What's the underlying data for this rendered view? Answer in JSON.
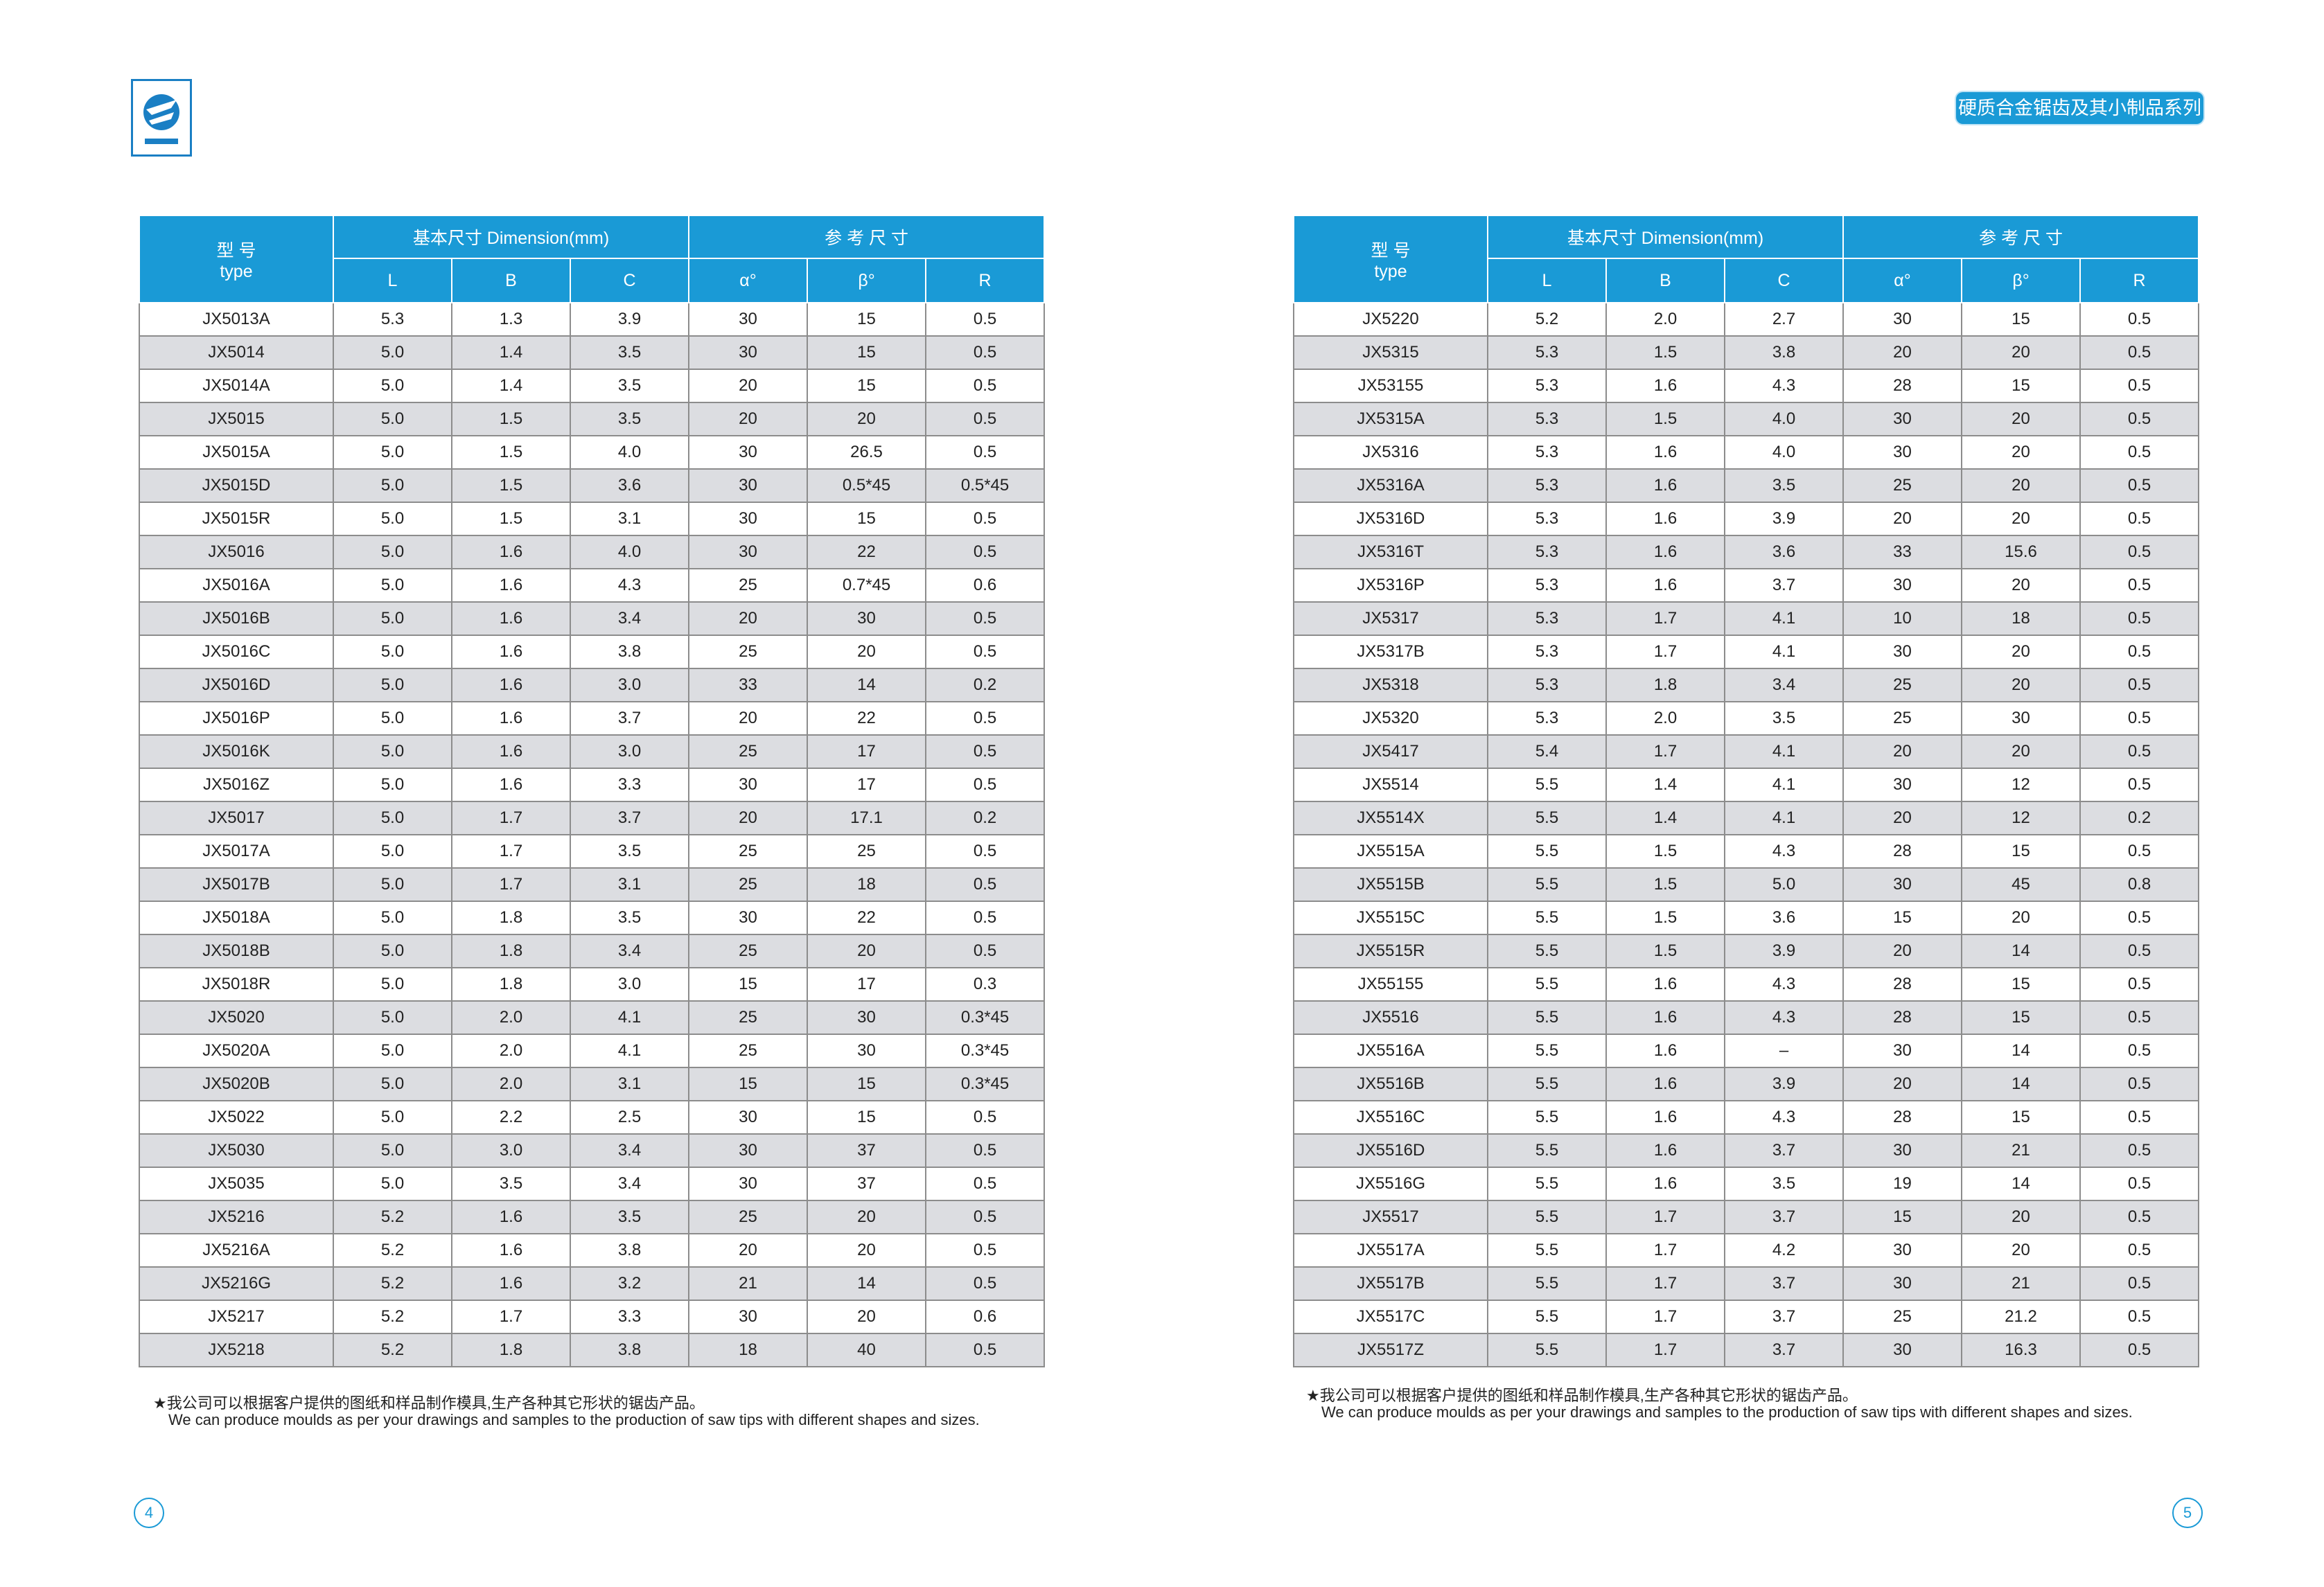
{
  "header": {
    "series_title": "硬质合金锯齿及其小制品系列"
  },
  "pages": [
    {
      "page_number": "4",
      "table": {
        "type_zh": "型 号",
        "type_en": "type",
        "dimension_group": "基本尺寸 Dimension(mm)",
        "reference_group": "参 考 尺 寸",
        "columns": [
          "L",
          "B",
          "C",
          "α°",
          "β°",
          "R"
        ],
        "rows": [
          [
            "JX5013A",
            "5.3",
            "1.3",
            "3.9",
            "30",
            "15",
            "0.5"
          ],
          [
            "JX5014",
            "5.0",
            "1.4",
            "3.5",
            "30",
            "15",
            "0.5"
          ],
          [
            "JX5014A",
            "5.0",
            "1.4",
            "3.5",
            "20",
            "15",
            "0.5"
          ],
          [
            "JX5015",
            "5.0",
            "1.5",
            "3.5",
            "20",
            "20",
            "0.5"
          ],
          [
            "JX5015A",
            "5.0",
            "1.5",
            "4.0",
            "30",
            "26.5",
            "0.5"
          ],
          [
            "JX5015D",
            "5.0",
            "1.5",
            "3.6",
            "30",
            "0.5*45",
            "0.5*45"
          ],
          [
            "JX5015R",
            "5.0",
            "1.5",
            "3.1",
            "30",
            "15",
            "0.5"
          ],
          [
            "JX5016",
            "5.0",
            "1.6",
            "4.0",
            "30",
            "22",
            "0.5"
          ],
          [
            "JX5016A",
            "5.0",
            "1.6",
            "4.3",
            "25",
            "0.7*45",
            "0.6"
          ],
          [
            "JX5016B",
            "5.0",
            "1.6",
            "3.4",
            "20",
            "30",
            "0.5"
          ],
          [
            "JX5016C",
            "5.0",
            "1.6",
            "3.8",
            "25",
            "20",
            "0.5"
          ],
          [
            "JX5016D",
            "5.0",
            "1.6",
            "3.0",
            "33",
            "14",
            "0.2"
          ],
          [
            "JX5016P",
            "5.0",
            "1.6",
            "3.7",
            "20",
            "22",
            "0.5"
          ],
          [
            "JX5016K",
            "5.0",
            "1.6",
            "3.0",
            "25",
            "17",
            "0.5"
          ],
          [
            "JX5016Z",
            "5.0",
            "1.6",
            "3.3",
            "30",
            "17",
            "0.5"
          ],
          [
            "JX5017",
            "5.0",
            "1.7",
            "3.7",
            "20",
            "17.1",
            "0.2"
          ],
          [
            "JX5017A",
            "5.0",
            "1.7",
            "3.5",
            "25",
            "25",
            "0.5"
          ],
          [
            "JX5017B",
            "5.0",
            "1.7",
            "3.1",
            "25",
            "18",
            "0.5"
          ],
          [
            "JX5018A",
            "5.0",
            "1.8",
            "3.5",
            "30",
            "22",
            "0.5"
          ],
          [
            "JX5018B",
            "5.0",
            "1.8",
            "3.4",
            "25",
            "20",
            "0.5"
          ],
          [
            "JX5018R",
            "5.0",
            "1.8",
            "3.0",
            "15",
            "17",
            "0.3"
          ],
          [
            "JX5020",
            "5.0",
            "2.0",
            "4.1",
            "25",
            "30",
            "0.3*45"
          ],
          [
            "JX5020A",
            "5.0",
            "2.0",
            "4.1",
            "25",
            "30",
            "0.3*45"
          ],
          [
            "JX5020B",
            "5.0",
            "2.0",
            "3.1",
            "15",
            "15",
            "0.3*45"
          ],
          [
            "JX5022",
            "5.0",
            "2.2",
            "2.5",
            "30",
            "15",
            "0.5"
          ],
          [
            "JX5030",
            "5.0",
            "3.0",
            "3.4",
            "30",
            "37",
            "0.5"
          ],
          [
            "JX5035",
            "5.0",
            "3.5",
            "3.4",
            "30",
            "37",
            "0.5"
          ],
          [
            "JX5216",
            "5.2",
            "1.6",
            "3.5",
            "25",
            "20",
            "0.5"
          ],
          [
            "JX5216A",
            "5.2",
            "1.6",
            "3.8",
            "20",
            "20",
            "0.5"
          ],
          [
            "JX5216G",
            "5.2",
            "1.6",
            "3.2",
            "21",
            "14",
            "0.5"
          ],
          [
            "JX5217",
            "5.2",
            "1.7",
            "3.3",
            "30",
            "20",
            "0.6"
          ],
          [
            "JX5218",
            "5.2",
            "1.8",
            "3.8",
            "18",
            "40",
            "0.5"
          ]
        ]
      },
      "note": {
        "zh": "★我公司可以根据客户提供的图纸和样品制作模具,生产各种其它形状的锯齿产品。",
        "en": "We can produce moulds as per your drawings and samples to the production of saw tips with different shapes and sizes."
      }
    },
    {
      "page_number": "5",
      "table": {
        "type_zh": "型 号",
        "type_en": "type",
        "dimension_group": "基本尺寸 Dimension(mm)",
        "reference_group": "参 考 尺 寸",
        "columns": [
          "L",
          "B",
          "C",
          "α°",
          "β°",
          "R"
        ],
        "rows": [
          [
            "JX5220",
            "5.2",
            "2.0",
            "2.7",
            "30",
            "15",
            "0.5"
          ],
          [
            "JX5315",
            "5.3",
            "1.5",
            "3.8",
            "20",
            "20",
            "0.5"
          ],
          [
            "JX53155",
            "5.3",
            "1.6",
            "4.3",
            "28",
            "15",
            "0.5"
          ],
          [
            "JX5315A",
            "5.3",
            "1.5",
            "4.0",
            "30",
            "20",
            "0.5"
          ],
          [
            "JX5316",
            "5.3",
            "1.6",
            "4.0",
            "30",
            "20",
            "0.5"
          ],
          [
            "JX5316A",
            "5.3",
            "1.6",
            "3.5",
            "25",
            "20",
            "0.5"
          ],
          [
            "JX5316D",
            "5.3",
            "1.6",
            "3.9",
            "20",
            "20",
            "0.5"
          ],
          [
            "JX5316T",
            "5.3",
            "1.6",
            "3.6",
            "33",
            "15.6",
            "0.5"
          ],
          [
            "JX5316P",
            "5.3",
            "1.6",
            "3.7",
            "30",
            "20",
            "0.5"
          ],
          [
            "JX5317",
            "5.3",
            "1.7",
            "4.1",
            "10",
            "18",
            "0.5"
          ],
          [
            "JX5317B",
            "5.3",
            "1.7",
            "4.1",
            "30",
            "20",
            "0.5"
          ],
          [
            "JX5318",
            "5.3",
            "1.8",
            "3.4",
            "25",
            "20",
            "0.5"
          ],
          [
            "JX5320",
            "5.3",
            "2.0",
            "3.5",
            "25",
            "30",
            "0.5"
          ],
          [
            "JX5417",
            "5.4",
            "1.7",
            "4.1",
            "20",
            "20",
            "0.5"
          ],
          [
            "JX5514",
            "5.5",
            "1.4",
            "4.1",
            "30",
            "12",
            "0.5"
          ],
          [
            "JX5514X",
            "5.5",
            "1.4",
            "4.1",
            "20",
            "12",
            "0.2"
          ],
          [
            "JX5515A",
            "5.5",
            "1.5",
            "4.3",
            "28",
            "15",
            "0.5"
          ],
          [
            "JX5515B",
            "5.5",
            "1.5",
            "5.0",
            "30",
            "45",
            "0.8"
          ],
          [
            "JX5515C",
            "5.5",
            "1.5",
            "3.6",
            "15",
            "20",
            "0.5"
          ],
          [
            "JX5515R",
            "5.5",
            "1.5",
            "3.9",
            "20",
            "14",
            "0.5"
          ],
          [
            "JX55155",
            "5.5",
            "1.6",
            "4.3",
            "28",
            "15",
            "0.5"
          ],
          [
            "JX5516",
            "5.5",
            "1.6",
            "4.3",
            "28",
            "15",
            "0.5"
          ],
          [
            "JX5516A",
            "5.5",
            "1.6",
            "–",
            "30",
            "14",
            "0.5"
          ],
          [
            "JX5516B",
            "5.5",
            "1.6",
            "3.9",
            "20",
            "14",
            "0.5"
          ],
          [
            "JX5516C",
            "5.5",
            "1.6",
            "4.3",
            "28",
            "15",
            "0.5"
          ],
          [
            "JX5516D",
            "5.5",
            "1.6",
            "3.7",
            "30",
            "21",
            "0.5"
          ],
          [
            "JX5516G",
            "5.5",
            "1.6",
            "3.5",
            "19",
            "14",
            "0.5"
          ],
          [
            "JX5517",
            "5.5",
            "1.7",
            "3.7",
            "15",
            "20",
            "0.5"
          ],
          [
            "JX5517A",
            "5.5",
            "1.7",
            "4.2",
            "30",
            "20",
            "0.5"
          ],
          [
            "JX5517B",
            "5.5",
            "1.7",
            "3.7",
            "30",
            "21",
            "0.5"
          ],
          [
            "JX5517C",
            "5.5",
            "1.7",
            "3.7",
            "25",
            "21.2",
            "0.5"
          ],
          [
            "JX5517Z",
            "5.5",
            "1.7",
            "3.7",
            "30",
            "16.3",
            "0.5"
          ]
        ]
      },
      "note": {
        "zh": "★我公司可以根据客户提供的图纸和样品制作模具,生产各种其它形状的锯齿产品。",
        "en": "We can produce moulds as per your drawings and samples to the production of saw tips with different shapes and sizes."
      }
    }
  ]
}
